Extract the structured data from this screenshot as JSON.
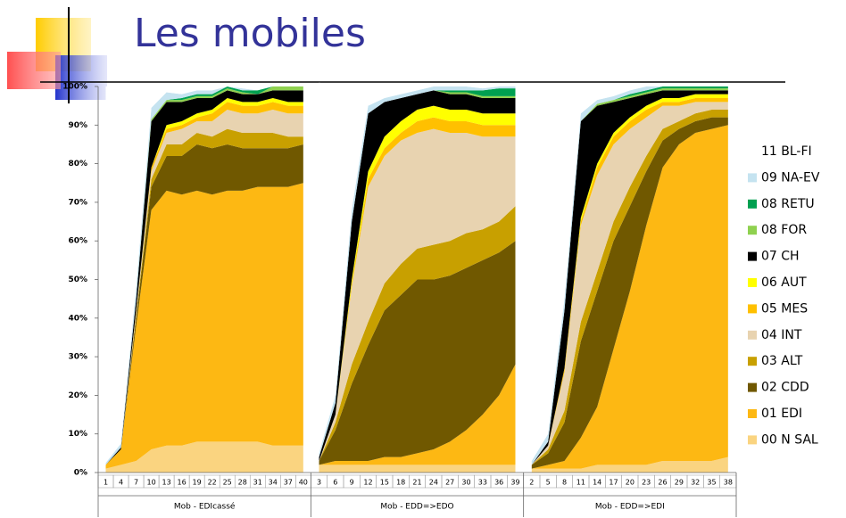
{
  "chart_data": {
    "type": "area",
    "stacked": true,
    "title": "Les mobiles",
    "ylim": [
      0,
      100
    ],
    "yticks": [
      {
        "value": 0,
        "label": "0%"
      },
      {
        "value": 10,
        "label": "10%"
      },
      {
        "value": 20,
        "label": "20%"
      },
      {
        "value": 30,
        "label": "30%"
      },
      {
        "value": 40,
        "label": "40%"
      },
      {
        "value": 50,
        "label": "50%"
      },
      {
        "value": 60,
        "label": "60%"
      },
      {
        "value": 70,
        "label": "70%"
      },
      {
        "value": 80,
        "label": "80%"
      },
      {
        "value": 90,
        "label": "90%"
      },
      {
        "value": 100,
        "label": "100%"
      }
    ],
    "legend": "right",
    "panels": [
      {
        "label": "Mob - EDIcassé",
        "categories": [
          "1",
          "4",
          "7",
          "10",
          "13",
          "16",
          "19",
          "22",
          "25",
          "28",
          "31",
          "34",
          "37",
          "40"
        ]
      },
      {
        "label": "Mob - EDD=>EDO",
        "categories": [
          "3",
          "6",
          "9",
          "12",
          "15",
          "18",
          "21",
          "24",
          "27",
          "30",
          "33",
          "36",
          "39"
        ]
      },
      {
        "label": "Mob - EDD=>EDI",
        "categories": [
          "2",
          "5",
          "8",
          "11",
          "14",
          "17",
          "20",
          "23",
          "26",
          "29",
          "32",
          "35",
          "38"
        ]
      }
    ],
    "series": [
      {
        "name": "11 BL-FI",
        "color": "#ffffff",
        "values": [
          [
            97.5,
            92.5,
            52,
            5.5,
            1.5,
            2,
            1,
            1,
            0,
            0.5,
            0,
            0,
            0,
            0
          ],
          [
            96,
            80,
            32,
            5,
            3,
            2,
            1,
            0,
            0,
            0,
            0.5,
            0,
            0
          ],
          [
            97,
            90,
            55,
            7,
            3.5,
            2.5,
            1,
            0,
            0,
            0,
            0,
            0,
            0
          ]
        ]
      },
      {
        "name": "09 NA-EV",
        "color": "#c5e3f0",
        "values": [
          [
            0.5,
            1,
            3,
            3,
            2,
            1,
            1,
            1,
            0,
            0.5,
            0,
            0,
            0,
            0
          ],
          [
            1,
            2,
            3,
            2,
            1,
            1,
            1,
            1,
            1,
            1,
            0.5,
            0.5,
            0.5
          ],
          [
            1,
            2,
            3,
            2,
            1,
            1,
            1,
            1,
            0,
            0,
            0,
            0,
            0
          ]
        ]
      },
      {
        "name": "08 RETU",
        "color": "#00a050",
        "values": [
          [
            0,
            0,
            0,
            0,
            0,
            0.5,
            0.5,
            0.5,
            0.5,
            0.5,
            1,
            0,
            0,
            0
          ],
          [
            0,
            0,
            0,
            0,
            0,
            0,
            0,
            0,
            0.5,
            0.5,
            1.5,
            2,
            2
          ],
          [
            0,
            0,
            0,
            0,
            0,
            0,
            0.5,
            0.5,
            0.5,
            0.5,
            0.5,
            0.5,
            0.5
          ]
        ]
      },
      {
        "name": "08 FOR",
        "color": "#8fd14f",
        "values": [
          [
            0,
            0,
            0,
            0.5,
            0.5,
            0.5,
            0.5,
            0.5,
            0.5,
            0.5,
            0,
            1,
            1,
            1
          ],
          [
            0,
            0,
            0,
            0,
            0,
            0,
            0,
            0,
            0.5,
            0.5,
            0.5,
            0.5,
            0.5
          ],
          [
            0,
            0,
            0,
            0,
            0.5,
            0.5,
            0.5,
            0.5,
            0.5,
            0.5,
            0.5,
            0.5,
            0.5
          ]
        ]
      },
      {
        "name": "07 CH",
        "color": "#000000",
        "values": [
          [
            0,
            0.5,
            3,
            12,
            6,
            5,
            4,
            3,
            2,
            2,
            2,
            2,
            3,
            3
          ],
          [
            1,
            3,
            15,
            15,
            9,
            6,
            4,
            4,
            4,
            4,
            4,
            4,
            4
          ],
          [
            0,
            1,
            15,
            25,
            15,
            8,
            5,
            3,
            2,
            2,
            1,
            1,
            1
          ]
        ]
      },
      {
        "name": "06 AUT",
        "color": "#ffff00",
        "values": [
          [
            0,
            0,
            0,
            0,
            1,
            1,
            1,
            1,
            1,
            1,
            1,
            1,
            1,
            1
          ],
          [
            0,
            0,
            1,
            2,
            3,
            3,
            3,
            3,
            3,
            3,
            3,
            3,
            3
          ],
          [
            0,
            0,
            0,
            1,
            1,
            1,
            1,
            1,
            1,
            1,
            1,
            1,
            1
          ]
        ]
      },
      {
        "name": "05 MES",
        "color": "#ffc000",
        "values": [
          [
            0,
            0,
            0,
            1,
            1,
            1,
            1,
            2,
            2,
            2,
            2,
            2,
            2,
            2
          ],
          [
            0,
            0,
            1,
            2,
            2,
            2,
            3,
            3,
            3,
            3,
            3,
            3,
            3
          ],
          [
            0,
            0,
            1,
            1,
            2,
            2,
            2,
            2,
            1,
            1,
            1,
            1,
            1
          ]
        ]
      },
      {
        "name": "04 INT",
        "color": "#e8d3b0",
        "values": [
          [
            0,
            0,
            1,
            2,
            3,
            4,
            3,
            4,
            5,
            5,
            5,
            6,
            6,
            6
          ],
          [
            0,
            2,
            20,
            35,
            33,
            32,
            30,
            30,
            28,
            26,
            24,
            22,
            18
          ],
          [
            0,
            1,
            10,
            25,
            25,
            20,
            15,
            10,
            6,
            4,
            3,
            2,
            2
          ]
        ]
      },
      {
        "name": "03 ALT",
        "color": "#c8a000",
        "values": [
          [
            0,
            0,
            1,
            2,
            3,
            3,
            3,
            3,
            4,
            4,
            4,
            4,
            3,
            2
          ],
          [
            0,
            2,
            5,
            6,
            7,
            8,
            8,
            9,
            9,
            9,
            8,
            8,
            9
          ],
          [
            0,
            1,
            3,
            5,
            5,
            5,
            5,
            4,
            3,
            2,
            2,
            2,
            2
          ]
        ]
      },
      {
        "name": "02 CDD",
        "color": "#705800",
        "values": [
          [
            0,
            0,
            2,
            6,
            9,
            10,
            12,
            12,
            12,
            11,
            10,
            10,
            10,
            10
          ],
          [
            1,
            8,
            20,
            30,
            38,
            42,
            45,
            44,
            43,
            42,
            40,
            37,
            32
          ],
          [
            1,
            3,
            10,
            25,
            30,
            28,
            22,
            14,
            7,
            4,
            3,
            3,
            2
          ]
        ]
      },
      {
        "name": "01 EDI",
        "color": "#fdb813",
        "values": [
          [
            1,
            4,
            35,
            62,
            66,
            65,
            65,
            64,
            65,
            65,
            66,
            67,
            67,
            68
          ],
          [
            0,
            1,
            1,
            1,
            2,
            2,
            3,
            4,
            6,
            9,
            13,
            18,
            26
          ],
          [
            0,
            1,
            2,
            8,
            15,
            30,
            45,
            62,
            76,
            82,
            85,
            86,
            86
          ]
        ]
      },
      {
        "name": "00 N SAL",
        "color": "#fad480",
        "values": [
          [
            1,
            2,
            3,
            6,
            7,
            7,
            8,
            8,
            8,
            8,
            8,
            7,
            7,
            7
          ],
          [
            2,
            2,
            2,
            2,
            2,
            2,
            2,
            2,
            2,
            2,
            2,
            2,
            2
          ],
          [
            1,
            1,
            1,
            1,
            2,
            2,
            2,
            2,
            3,
            3,
            3,
            3,
            4
          ]
        ]
      }
    ]
  }
}
